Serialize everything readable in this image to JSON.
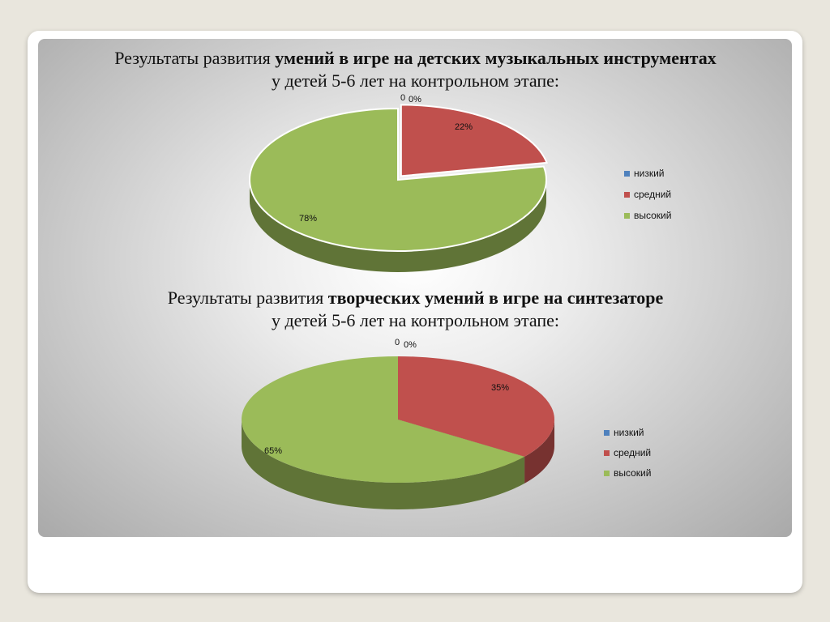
{
  "charts": [
    {
      "title_normal": "Результаты развития ",
      "title_bold": "умений в игре на детских музыкальных инструментах",
      "subtitle": "у детей 5-6 лет на контрольном этапе:"
    },
    {
      "title_normal": "Результаты развития ",
      "title_bold": "творческих умений в игре на синтезаторе",
      "subtitle": "у детей 5-6 лет на контрольном этапе:"
    }
  ],
  "chart_data": [
    {
      "type": "pie",
      "style": "3d",
      "categories": [
        "низкий",
        "средний",
        "высокий"
      ],
      "values": [
        0,
        22,
        78
      ],
      "data_labels": [
        "0%",
        "22%",
        "78%"
      ],
      "zero_label": "0",
      "colors": [
        "#4f81bd",
        "#c0504d",
        "#9bbb59"
      ],
      "legend_position": "right"
    },
    {
      "type": "pie",
      "style": "3d",
      "categories": [
        "низкий",
        "средний",
        "высокий"
      ],
      "values": [
        0,
        35,
        65
      ],
      "data_labels": [
        "0%",
        "35%",
        "65%"
      ],
      "zero_label": "0",
      "colors": [
        "#4f81bd",
        "#c0504d",
        "#9bbb59"
      ],
      "legend_position": "right"
    }
  ]
}
